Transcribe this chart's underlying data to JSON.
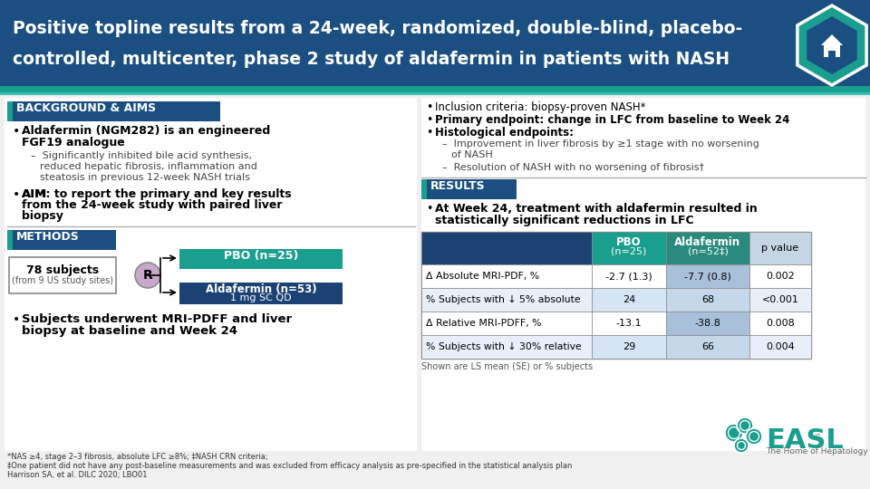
{
  "title_line1": "Positive topline results from a 24-week, randomized, double-blind, placebo-",
  "title_line2": "controlled, multicenter, phase 2 study of aldafermin in patients with NASH",
  "title_bg": "#1b4f82",
  "title_accent": "#1a9e8e",
  "title_accent2": "#3bbfb0",
  "title_text_color": "#ffffff",
  "section_header_bg": "#1b4f82",
  "teal_color": "#1a9e8e",
  "light_blue_row": "#b8cfe8",
  "lighter_blue_row": "#d5e5f5",
  "table_header_pval_bg": "#c5d5e5",
  "table_row_white": "#ffffff",
  "table_row_light": "#e8eff8",
  "dark_blue_left": "#1b4272",
  "table_alda_col": "#a8c0da",
  "table_alda_col2": "#c5d8ea",
  "background": "#f0f0f0",
  "panel_bg": "#ffffff",
  "methods_alda_bg": "#1b4272",
  "table_data": [
    [
      "Δ Absolute MRI-PDF, %",
      "-2.7 (1.3)",
      "-7.7 (0.8)",
      "0.002"
    ],
    [
      "% Subjects with ↓ 5% absolute",
      "24",
      "68",
      "<0.001"
    ],
    [
      "Δ Relative MRI-PDFF, %",
      "-13.1",
      "-38.8",
      "0.008"
    ],
    [
      "% Subjects with ↓ 30% relative",
      "29",
      "66",
      "0.004"
    ]
  ],
  "footnote1": "*NAS ≥4, stage 2–3 fibrosis, absolute LFC ≥8%; ‡NASH CRN criteria;",
  "footnote2": "‡One patient did not have any post-baseline measurements and was excluded from efficacy analysis as pre-specified in the statistical analysis plan",
  "footnote3": "Harrison SA, et al. DILC 2020; LBO01"
}
